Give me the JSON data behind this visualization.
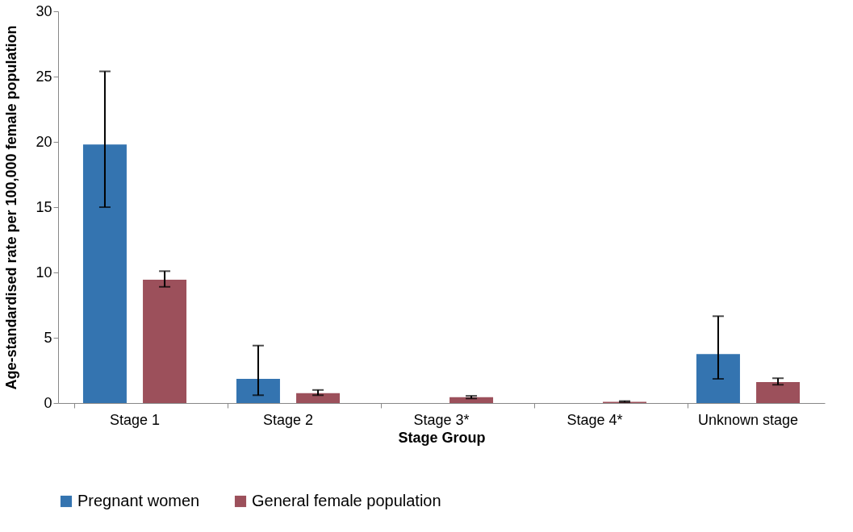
{
  "chart_data": {
    "type": "bar",
    "xlabel": "Stage Group",
    "ylabel": "Age-standardised rate per 100,000 female population",
    "categories": [
      "Stage 1",
      "Stage 2",
      "Stage 3*",
      "Stage 4*",
      "Unknown stage"
    ],
    "series": [
      {
        "name": "Pregnant women",
        "color": "#3474b0",
        "values": [
          19.8,
          1.85,
          null,
          null,
          3.75
        ],
        "errors": [
          [
            15.0,
            25.4
          ],
          [
            0.6,
            4.4
          ],
          null,
          null,
          [
            1.85,
            6.65
          ]
        ]
      },
      {
        "name": "General female population",
        "color": "#9c505b",
        "values": [
          9.45,
          0.75,
          0.45,
          0.1,
          1.6
        ],
        "errors": [
          [
            8.9,
            10.1
          ],
          [
            0.6,
            1.0
          ],
          [
            0.35,
            0.55
          ],
          [
            0.07,
            0.15
          ],
          [
            1.4,
            1.9
          ]
        ]
      }
    ],
    "ylim": [
      0,
      30
    ],
    "yticks": [
      0,
      5,
      10,
      15,
      20,
      25,
      30
    ],
    "grid": false,
    "legend": "bottom"
  }
}
